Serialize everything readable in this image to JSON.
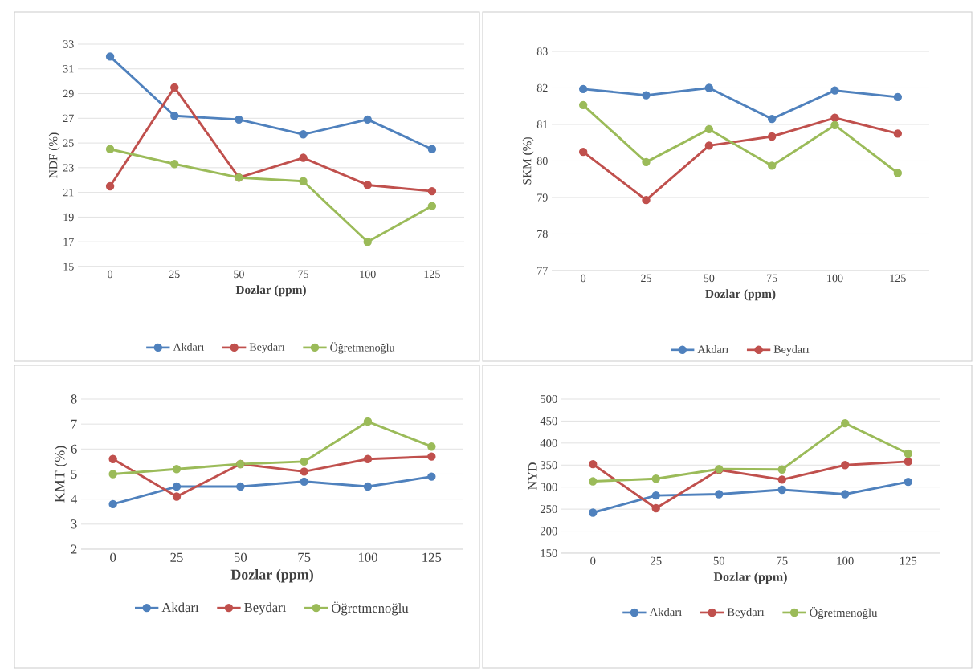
{
  "chart_data": [
    {
      "type": "line",
      "xlabel": "Dozlar (ppm)",
      "ylabel": "NDF (%)",
      "categories": [
        "0",
        "25",
        "50",
        "75",
        "100",
        "125"
      ],
      "ylim": [
        15,
        33
      ],
      "yticks": [
        15,
        17,
        19,
        21,
        23,
        25,
        27,
        29,
        31,
        33
      ],
      "grid": "y",
      "legend": "bottom",
      "marker": "circle",
      "series": [
        {
          "name": "Akdarı",
          "color": "#4f81bd",
          "values": [
            32.0,
            27.2,
            26.9,
            25.7,
            26.9,
            24.5
          ]
        },
        {
          "name": "Beydarı",
          "color": "#c0504d",
          "values": [
            21.5,
            29.5,
            22.2,
            23.8,
            21.6,
            21.1
          ]
        },
        {
          "name": "Öğretmenoğlu",
          "color": "#9bbb59",
          "values": [
            24.5,
            23.3,
            22.2,
            21.9,
            17.0,
            19.9
          ]
        }
      ]
    },
    {
      "type": "line",
      "xlabel": "Dozlar (ppm)",
      "ylabel": "SKM (%)",
      "categories": [
        "0",
        "25",
        "50",
        "75",
        "100",
        "125"
      ],
      "ylim": [
        77,
        83
      ],
      "yticks": [
        77,
        78,
        79,
        80,
        81,
        82,
        83
      ],
      "grid": "y",
      "legend": "bottom",
      "marker": "circle",
      "series": [
        {
          "name": "Akdarı",
          "color": "#4f81bd",
          "values": [
            81.97,
            81.8,
            82.0,
            81.15,
            81.93,
            81.75
          ]
        },
        {
          "name": "Beydarı",
          "color": "#c0504d",
          "values": [
            80.25,
            78.93,
            80.42,
            80.67,
            81.18,
            80.75
          ]
        },
        {
          "color": "#9bbb59",
          "values": [
            81.53,
            79.97,
            80.87,
            79.87,
            80.98,
            79.67
          ]
        }
      ]
    },
    {
      "type": "line",
      "xlabel": "Dozlar (ppm)",
      "ylabel": "KMT (%)",
      "categories": [
        "0",
        "25",
        "50",
        "75",
        "100",
        "125"
      ],
      "ylim": [
        2,
        8
      ],
      "yticks": [
        2,
        3,
        4,
        5,
        6,
        7,
        8
      ],
      "grid": "y",
      "legend": "bottom",
      "marker": "circle",
      "series": [
        {
          "name": "Akdarı",
          "color": "#4f81bd",
          "values": [
            3.8,
            4.5,
            4.5,
            4.7,
            4.5,
            4.9
          ]
        },
        {
          "name": "Beydarı",
          "color": "#c0504d",
          "values": [
            5.6,
            4.1,
            5.4,
            5.1,
            5.6,
            5.7
          ]
        },
        {
          "name": "Öğretmenoğlu",
          "color": "#9bbb59",
          "values": [
            5.0,
            5.2,
            5.4,
            5.5,
            7.1,
            6.1
          ]
        }
      ]
    },
    {
      "type": "line",
      "xlabel": "Dozlar (ppm)",
      "ylabel": "NYD",
      "categories": [
        "0",
        "25",
        "50",
        "75",
        "100",
        "125"
      ],
      "ylim": [
        150,
        500
      ],
      "yticks": [
        150,
        200,
        250,
        300,
        350,
        400,
        450,
        500
      ],
      "grid": "y",
      "legend": "bottom",
      "marker": "circle",
      "series": [
        {
          "name": "Akdarı",
          "color": "#4f81bd",
          "values": [
            242,
            281,
            284,
            294,
            284,
            312
          ]
        },
        {
          "name": "Beydarı",
          "color": "#c0504d",
          "values": [
            352,
            252,
            339,
            317,
            350,
            358
          ]
        },
        {
          "name": "Öğretmenoğlu",
          "color": "#9bbb59",
          "values": [
            313,
            319,
            341,
            340,
            445,
            376
          ]
        }
      ]
    }
  ]
}
